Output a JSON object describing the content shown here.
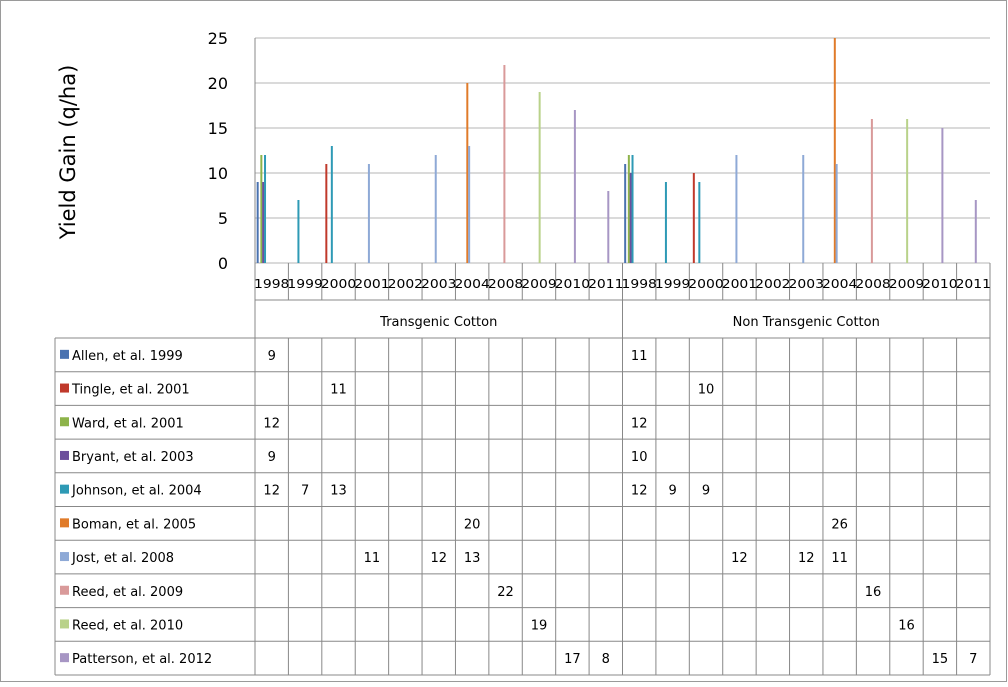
{
  "chart_data": {
    "type": "bar",
    "ylabel": "Yield Gain (q/ha)",
    "ylim": [
      0,
      25
    ],
    "yticks": [
      0,
      5,
      10,
      15,
      20,
      25
    ],
    "groups": [
      "Transgenic Cotton",
      "Non Transgenic Cotton"
    ],
    "years": [
      "1998",
      "1999",
      "2000",
      "2001",
      "2002",
      "2003",
      "2004",
      "2008",
      "2009",
      "2010",
      "2011"
    ],
    "categories": [
      "1998",
      "1999",
      "2000",
      "2001",
      "2002",
      "2003",
      "2004",
      "2008",
      "2009",
      "2010",
      "2011",
      "1998",
      "1999",
      "2000",
      "2001",
      "2002",
      "2003",
      "2004",
      "2008",
      "2009",
      "2010",
      "2011"
    ],
    "series": [
      {
        "name": "Allen, et al. 1999",
        "color": "#4a72b0",
        "values": [
          9,
          null,
          null,
          null,
          null,
          null,
          null,
          null,
          null,
          null,
          null,
          11,
          null,
          null,
          null,
          null,
          null,
          null,
          null,
          null,
          null,
          null
        ]
      },
      {
        "name": "Tingle, et al. 2001",
        "color": "#c0392b",
        "values": [
          null,
          null,
          11,
          null,
          null,
          null,
          null,
          null,
          null,
          null,
          null,
          null,
          null,
          10,
          null,
          null,
          null,
          null,
          null,
          null,
          null,
          null
        ]
      },
      {
        "name": "Ward, et al. 2001",
        "color": "#8db34a",
        "values": [
          12,
          null,
          null,
          null,
          null,
          null,
          null,
          null,
          null,
          null,
          null,
          12,
          null,
          null,
          null,
          null,
          null,
          null,
          null,
          null,
          null,
          null
        ]
      },
      {
        "name": "Bryant, et al. 2003",
        "color": "#6c4f9c",
        "values": [
          9,
          null,
          null,
          null,
          null,
          null,
          null,
          null,
          null,
          null,
          null,
          10,
          null,
          null,
          null,
          null,
          null,
          null,
          null,
          null,
          null,
          null
        ]
      },
      {
        "name": "Johnson, et al. 2004",
        "color": "#2e9ab5",
        "values": [
          12,
          7,
          13,
          null,
          null,
          null,
          null,
          null,
          null,
          null,
          null,
          12,
          9,
          9,
          null,
          null,
          null,
          null,
          null,
          null,
          null,
          null
        ]
      },
      {
        "name": "Boman, et al. 2005",
        "color": "#e07b2a",
        "values": [
          null,
          null,
          null,
          null,
          null,
          null,
          20,
          null,
          null,
          null,
          null,
          null,
          null,
          null,
          null,
          null,
          null,
          26,
          null,
          null,
          null,
          null
        ]
      },
      {
        "name": "Jost, et al. 2008",
        "color": "#8ea9d6",
        "values": [
          null,
          null,
          null,
          11,
          null,
          12,
          13,
          null,
          null,
          null,
          null,
          null,
          null,
          null,
          12,
          null,
          12,
          11,
          null,
          null,
          null,
          null
        ]
      },
      {
        "name": "Reed, et al. 2009",
        "color": "#d99a9a",
        "values": [
          null,
          null,
          null,
          null,
          null,
          null,
          null,
          22,
          null,
          null,
          null,
          null,
          null,
          null,
          null,
          null,
          null,
          null,
          16,
          null,
          null,
          null
        ]
      },
      {
        "name": "Reed, et al. 2010",
        "color": "#b9d28a",
        "values": [
          null,
          null,
          null,
          null,
          null,
          null,
          null,
          null,
          19,
          null,
          null,
          null,
          null,
          null,
          null,
          null,
          null,
          null,
          null,
          16,
          null,
          null
        ]
      },
      {
        "name": "Patterson, et al. 2012",
        "color": "#a796c4",
        "values": [
          null,
          null,
          null,
          null,
          null,
          null,
          null,
          null,
          null,
          17,
          8,
          null,
          null,
          null,
          null,
          null,
          null,
          null,
          null,
          null,
          15,
          7
        ]
      }
    ]
  }
}
